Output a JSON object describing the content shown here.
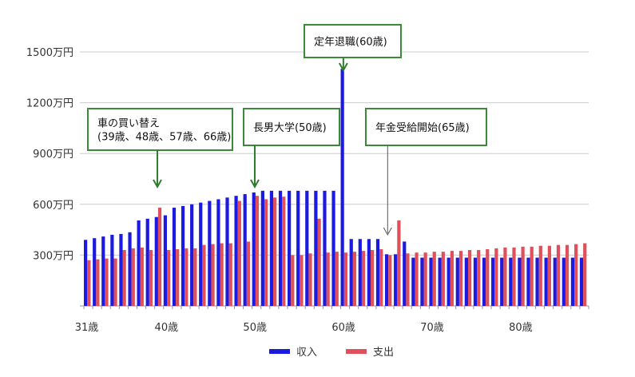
{
  "chart_data": {
    "type": "bar",
    "ylim": [
      0,
      1500
    ],
    "y_ticks": [
      {
        "value": 300,
        "label": "300万円"
      },
      {
        "value": 600,
        "label": "600万円"
      },
      {
        "value": 900,
        "label": "900万円"
      },
      {
        "value": 1200,
        "label": "1200万円"
      },
      {
        "value": 1500,
        "label": "1500万円"
      }
    ],
    "x_ticks": [
      {
        "age": 31,
        "label": "31歳"
      },
      {
        "age": 40,
        "label": "40歳"
      },
      {
        "age": 50,
        "label": "50歳"
      },
      {
        "age": 60,
        "label": "60歳"
      },
      {
        "age": 70,
        "label": "70歳"
      },
      {
        "age": 80,
        "label": "80歳"
      }
    ],
    "x_start_age": 31,
    "grid": true,
    "legend_position": "bottom",
    "series": [
      {
        "name": "収入",
        "color": "#1a1ae0",
        "values": [
          390,
          400,
          410,
          420,
          425,
          435,
          505,
          515,
          525,
          535,
          580,
          590,
          600,
          610,
          620,
          630,
          640,
          650,
          660,
          670,
          680,
          680,
          680,
          680,
          680,
          680,
          680,
          680,
          680,
          1400,
          395,
          395,
          395,
          395,
          305,
          305,
          380,
          285,
          285,
          285,
          285,
          285,
          285,
          285,
          285,
          285,
          285,
          285,
          285,
          285,
          285,
          285,
          285,
          285,
          285,
          285,
          285
        ]
      },
      {
        "name": "支出",
        "color": "#e0505a",
        "values": [
          270,
          275,
          280,
          280,
          330,
          340,
          345,
          330,
          580,
          330,
          335,
          340,
          340,
          360,
          365,
          370,
          370,
          620,
          380,
          650,
          630,
          640,
          645,
          300,
          300,
          310,
          515,
          315,
          320,
          315,
          320,
          325,
          330,
          335,
          300,
          505,
          310,
          315,
          315,
          320,
          320,
          325,
          325,
          330,
          330,
          335,
          340,
          345,
          345,
          350,
          350,
          355,
          355,
          360,
          360,
          365,
          370
        ]
      }
    ],
    "annotations": [
      {
        "lines": [
          "車の買い替え",
          "(39歳、48歳、57歳、66歳)"
        ],
        "target_age": 39,
        "target_value": 650
      },
      {
        "lines": [
          "長男大学(50歳)"
        ],
        "target_age": 50,
        "target_value": 680
      },
      {
        "lines": [
          "定年退職(60歳)"
        ],
        "target_age": 60,
        "target_value": 1420
      },
      {
        "lines": [
          "年金受給開始(65歳)"
        ],
        "target_age": 65,
        "target_value": 400
      }
    ]
  }
}
